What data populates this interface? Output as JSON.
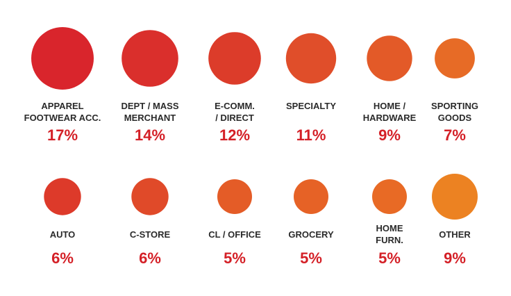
{
  "chart_data": {
    "type": "bubble",
    "unit": "%",
    "categories": [
      {
        "label_lines": [
          "APPAREL",
          "FOOTWEAR ACC."
        ],
        "value": 17,
        "value_label": "17%"
      },
      {
        "label_lines": [
          "DEPT / MASS",
          "MERCHANT"
        ],
        "value": 14,
        "value_label": "14%"
      },
      {
        "label_lines": [
          "E-COMM.",
          "/ DIRECT"
        ],
        "value": 12,
        "value_label": "12%"
      },
      {
        "label_lines": [
          "SPECIALTY"
        ],
        "value": 11,
        "value_label": "11%"
      },
      {
        "label_lines": [
          "HOME /",
          "HARDWARE"
        ],
        "value": 9,
        "value_label": "9%"
      },
      {
        "label_lines": [
          "SPORTING",
          "GOODS"
        ],
        "value": 7,
        "value_label": "7%"
      },
      {
        "label_lines": [
          "AUTO"
        ],
        "value": 6,
        "value_label": "6%"
      },
      {
        "label_lines": [
          "C-STORE"
        ],
        "value": 6,
        "value_label": "6%"
      },
      {
        "label_lines": [
          "CL / OFFICE"
        ],
        "value": 5,
        "value_label": "5%"
      },
      {
        "label_lines": [
          "GROCERY"
        ],
        "value": 5,
        "value_label": "5%"
      },
      {
        "label_lines": [
          "HOME",
          "FURN."
        ],
        "value": 5,
        "value_label": "5%"
      },
      {
        "label_lines": [
          "OTHER"
        ],
        "value": 9,
        "value_label": "9%"
      }
    ],
    "colors": {
      "bubbles": [
        "#d9252c",
        "#da2f2c",
        "#dc3c2a",
        "#e04e2a",
        "#e35a28",
        "#e76b26",
        "#dd3a2a",
        "#e04a29",
        "#e45c27",
        "#e66226",
        "#e86a25",
        "#ec8222"
      ],
      "value_text": "#d42027",
      "label_text": "#2a2a2a"
    }
  }
}
